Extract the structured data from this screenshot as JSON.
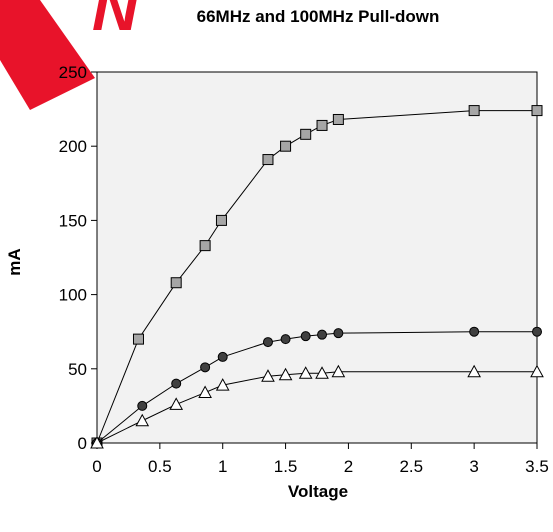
{
  "watermark": {
    "text": "N",
    "color": "#e8132a"
  },
  "chart_data": {
    "type": "line",
    "title": "66MHz and 100MHz Pull-down",
    "xlabel": "Voltage",
    "ylabel": "mA",
    "xlim": [
      0,
      3.5
    ],
    "ylim": [
      0,
      250
    ],
    "xticks": [
      "0",
      "0.5",
      "1",
      "1.5",
      "2",
      "2.5",
      "3",
      "3.5"
    ],
    "yticks": [
      "0",
      "50",
      "100",
      "150",
      "200",
      "250"
    ],
    "grid": false,
    "legend": "none",
    "plot_background": "#f2f2f2",
    "series": [
      {
        "marker": "square",
        "marker_color": "#a6a6a6",
        "points": [
          [
            0,
            0
          ],
          [
            0.33,
            70
          ],
          [
            0.63,
            108
          ],
          [
            0.86,
            133
          ],
          [
            0.99,
            150
          ],
          [
            1.36,
            191
          ],
          [
            1.5,
            200
          ],
          [
            1.66,
            208
          ],
          [
            1.79,
            214
          ],
          [
            1.92,
            218
          ],
          [
            3.0,
            224
          ],
          [
            3.5,
            224
          ]
        ]
      },
      {
        "marker": "circle",
        "marker_color": "#404040",
        "points": [
          [
            0,
            0
          ],
          [
            0.36,
            25
          ],
          [
            0.63,
            40
          ],
          [
            0.86,
            51
          ],
          [
            1.0,
            58
          ],
          [
            1.36,
            68
          ],
          [
            1.5,
            70
          ],
          [
            1.66,
            72
          ],
          [
            1.79,
            73
          ],
          [
            1.92,
            74
          ],
          [
            3.0,
            75
          ],
          [
            3.5,
            75
          ]
        ]
      },
      {
        "marker": "triangle",
        "marker_color": "#ffffff",
        "points": [
          [
            0,
            0
          ],
          [
            0.36,
            15
          ],
          [
            0.63,
            26
          ],
          [
            0.86,
            34
          ],
          [
            1.0,
            39
          ],
          [
            1.36,
            45
          ],
          [
            1.5,
            46
          ],
          [
            1.66,
            47
          ],
          [
            1.79,
            47
          ],
          [
            1.92,
            48
          ],
          [
            3.0,
            48
          ],
          [
            3.5,
            48
          ]
        ]
      }
    ]
  }
}
